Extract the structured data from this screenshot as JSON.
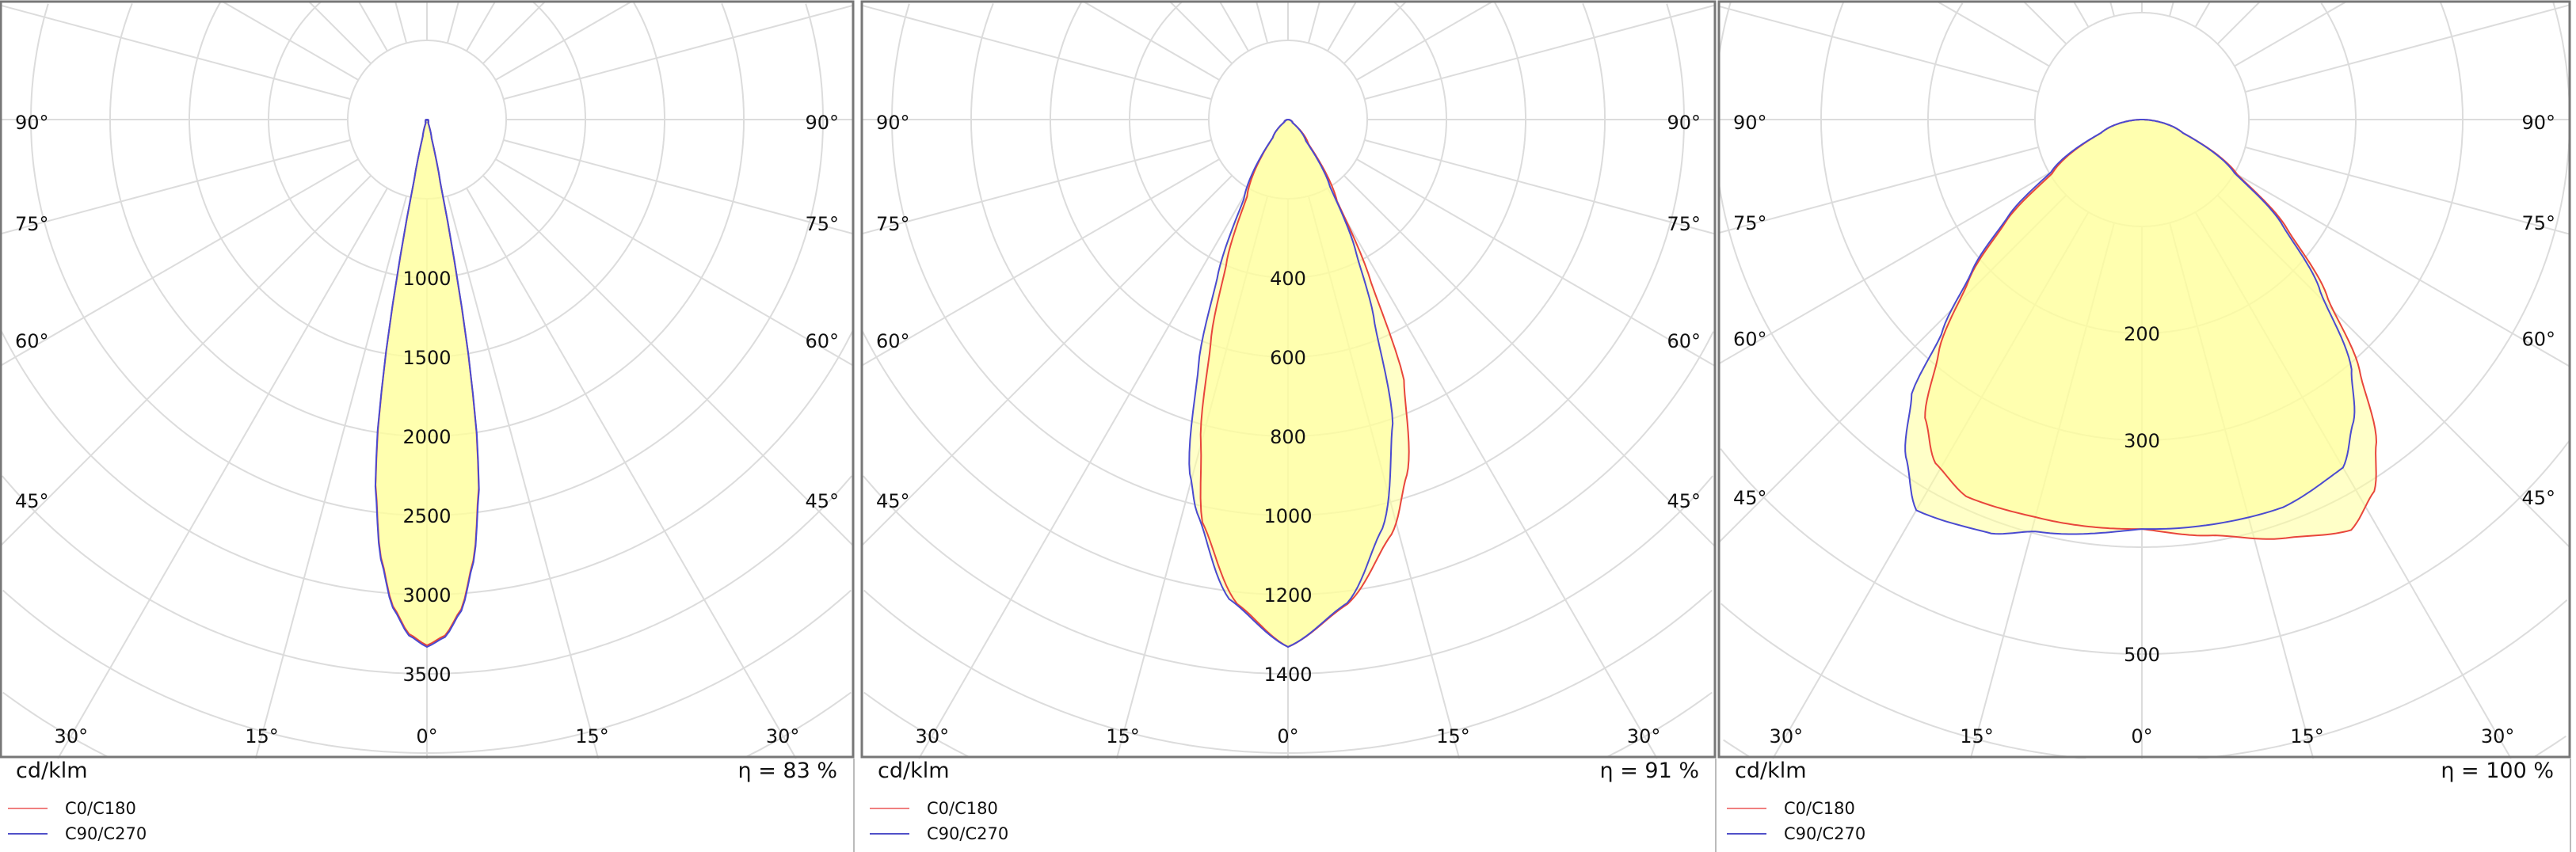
{
  "panels": [
    {
      "unit": "cd/klm",
      "efficiency": "η = 83 %",
      "legend": [
        {
          "label": "C0/C180",
          "color": "#f08080"
        },
        {
          "label": "C90/C270",
          "color": "#5050c8"
        }
      ]
    },
    {
      "unit": "cd/klm",
      "efficiency": "η = 91 %",
      "legend": [
        {
          "label": "C0/C180",
          "color": "#f08080"
        },
        {
          "label": "C90/C270",
          "color": "#5050c8"
        }
      ]
    },
    {
      "unit": "cd/klm",
      "efficiency": "η = 100 %",
      "legend": [
        {
          "label": "C0/C180",
          "color": "#f08080"
        },
        {
          "label": "C90/C270",
          "color": "#5050c8"
        }
      ]
    }
  ],
  "chart_data": [
    {
      "type": "polar",
      "unit": "cd/klm",
      "ring_start": 500,
      "ring_step": 500,
      "ring_labels": [
        "1000",
        "1500",
        "2000",
        "2500",
        "3000",
        "3500"
      ],
      "side_angle_labels": [
        "90°",
        "75°",
        "60°",
        "45°"
      ],
      "bottom_angle_labels": [
        "30°",
        "15°",
        "0°",
        "15°",
        "30°"
      ],
      "series": [
        {
          "name": "C0/C180",
          "color": "#e8463c",
          "right": {
            "gamma": [
              0,
              2,
              4,
              6,
              8,
              9,
              10,
              11,
              12,
              14,
              20,
              90
            ],
            "I": [
              3320,
              3260,
              3100,
              2800,
              2350,
              2000,
              1500,
              900,
              400,
              120,
              20,
              0
            ]
          },
          "left": {
            "gamma": [
              0,
              2,
              4,
              6,
              8,
              9,
              10,
              11,
              12,
              14,
              20,
              90
            ],
            "I": [
              3320,
              3250,
              3080,
              2780,
              2330,
              1980,
              1480,
              880,
              380,
              110,
              20,
              0
            ]
          }
        },
        {
          "name": "C90/C270",
          "color": "#4a4ad0",
          "right": {
            "gamma": [
              0,
              2,
              4,
              6,
              8,
              9,
              10,
              11,
              12,
              14,
              20,
              90
            ],
            "I": [
              3330,
              3270,
              3110,
              2810,
              2360,
              2010,
              1510,
              910,
              410,
              120,
              20,
              0
            ]
          },
          "left": {
            "gamma": [
              0,
              2,
              4,
              6,
              8,
              9,
              10,
              11,
              12,
              14,
              20,
              90
            ],
            "I": [
              3330,
              3260,
              3090,
              2790,
              2340,
              1990,
              1490,
              890,
              390,
              110,
              20,
              0
            ]
          }
        }
      ]
    },
    {
      "type": "polar",
      "unit": "cd/klm",
      "ring_start": 200,
      "ring_step": 200,
      "ring_labels": [
        "400",
        "600",
        "800",
        "1000",
        "1200",
        "1400"
      ],
      "side_angle_labels": [
        "90°",
        "75°",
        "60°",
        "45°"
      ],
      "bottom_angle_labels": [
        "30°",
        "15°",
        "0°",
        "15°",
        "30°"
      ],
      "series": [
        {
          "name": "C0/C180",
          "color": "#e8463c",
          "right": {
            "gamma": [
              0,
              7,
              14,
              18.6,
              24,
              27,
              31,
              40,
              55,
              90
            ],
            "I": [
              1332,
              1233,
              1080,
              944,
              720,
              462,
              240,
              80,
              15,
              0
            ]
          },
          "left": {
            "gamma": [
              0,
              6,
              12,
              15,
              19,
              23,
              28,
              40,
              55,
              90
            ],
            "I": [
              1332,
              1230,
              1040,
              850,
              600,
              400,
              220,
              60,
              12,
              0
            ]
          }
        },
        {
          "name": "C90/C270",
          "color": "#4a4ad0",
          "right": {
            "gamma": [
              0,
              7,
              13,
              19,
              23,
              27,
              32,
              40,
              55,
              90
            ],
            "I": [
              1332,
              1230,
              1060,
              812,
              560,
              380,
              200,
              70,
              14,
              0
            ]
          },
          "left": {
            "gamma": [
              0,
              7,
              13,
              15.5,
              20,
              24,
              29,
              40,
              55,
              90
            ],
            "I": [
              1332,
              1220,
              1020,
              928,
              660,
              440,
              230,
              60,
              12,
              0
            ]
          }
        }
      ]
    },
    {
      "type": "polar",
      "unit": "cd/klm",
      "ring_start": 100,
      "ring_step": 100,
      "ring_labels": [
        "200",
        "300",
        "500"
      ],
      "ring_label_values": [
        200,
        300,
        500
      ],
      "side_angle_labels": [
        "90°",
        "75°",
        "60°",
        "45°"
      ],
      "bottom_angle_labels": [
        "30°",
        "15°",
        "0°",
        "15°",
        "30°"
      ],
      "series": [
        {
          "name": "C0/C180",
          "color": "#e8463c",
          "right": {
            "gamma": [
              0,
              10,
              19,
              27,
              32,
              36,
              41,
              46,
              53,
              60,
              72,
              90
            ],
            "I": [
              383,
              395,
              414,
              431,
              410,
              373,
              310,
              242,
              170,
              103,
              40,
              0
            ]
          },
          "left": {
            "gamma": [
              0,
              15,
              25,
              31,
              36,
              41,
              47,
              53,
              59,
              72,
              90
            ],
            "I": [
              383,
              385,
              389,
              375,
              345,
              290,
              222,
              160,
              98,
              40,
              0
            ]
          }
        },
        {
          "name": "C90/C270",
          "color": "#4a4ad0",
          "right": {
            "gamma": [
              0,
              7,
              20,
              30,
              35,
              40,
              46,
              53,
              60,
              72,
              90
            ],
            "I": [
              383,
              384,
              386,
              376,
              345,
              305,
              232,
              165,
              100,
              40,
              0
            ]
          },
          "left": {
            "gamma": [
              0,
              14.5,
              20,
              30,
              35,
              40,
              43,
              48,
              54,
              60,
              72,
              90
            ],
            "I": [
              383,
              398,
              412,
              422,
              385,
              335,
              275,
              215,
              155,
              98,
              40,
              0
            ]
          }
        }
      ]
    }
  ]
}
